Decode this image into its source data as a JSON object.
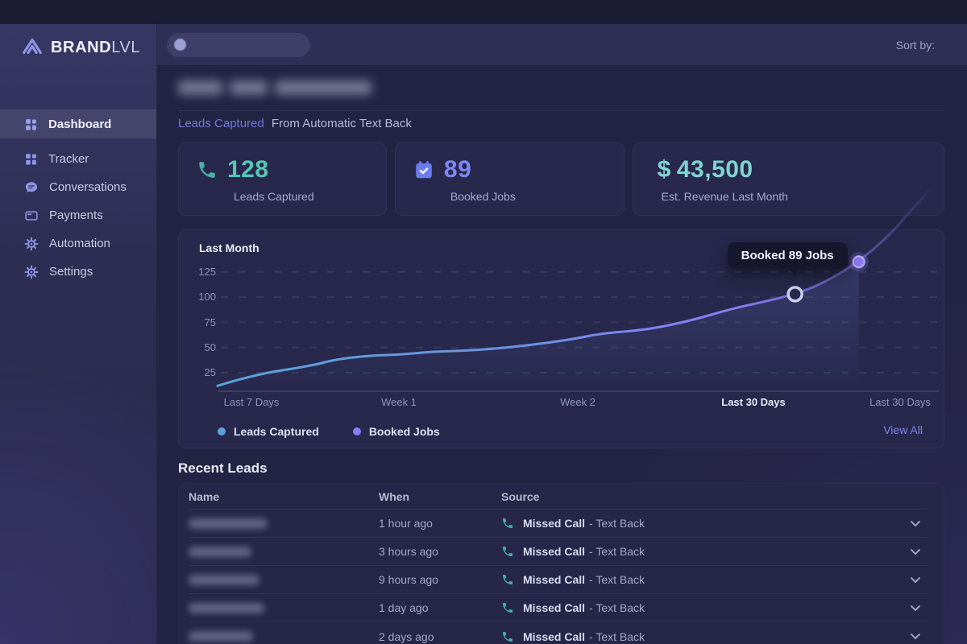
{
  "brand": {
    "name_primary": "BRAND",
    "name_secondary": "LVL"
  },
  "topbar": {
    "sort_label": "Sort by:"
  },
  "sidebar": {
    "items": [
      {
        "label": "Dashboard",
        "icon": "grid-icon",
        "active": true
      },
      {
        "label": "Tracker",
        "icon": "grid-icon",
        "active": false
      },
      {
        "label": "Conversations",
        "icon": "chat-icon",
        "active": false
      },
      {
        "label": "Payments",
        "icon": "credit-card-icon",
        "active": false
      },
      {
        "label": "Automation",
        "icon": "gear-icon",
        "active": false
      },
      {
        "label": "Settings",
        "icon": "gear-icon",
        "active": false
      }
    ]
  },
  "header": {
    "title_redacted": true,
    "subtitle_primary": "Leads Captured",
    "subtitle_secondary": "From Automatic Text Back"
  },
  "stats": {
    "cards": [
      {
        "icon": "phone-icon",
        "value": "128",
        "label": "Leads Captured",
        "value_color": "#57c7b6"
      },
      {
        "icon": "calendar-check-icon",
        "value": "89",
        "label": "Booked Jobs",
        "value_color": "#7d88f5"
      },
      {
        "icon": "none",
        "prefix": "$",
        "value": "43,500",
        "label": "Est. Revenue Last Month",
        "value_color": "#7fd4cf"
      }
    ]
  },
  "chart_data": {
    "type": "line",
    "title": "Last Month",
    "grid": "dashed-horizontal",
    "y_ticks_top_to_bottom": [
      125,
      100,
      75,
      50,
      25
    ],
    "x_labels": [
      {
        "label": "Last 7 Days",
        "emphasis": false
      },
      {
        "label": "Week 1",
        "emphasis": false
      },
      {
        "label": "Week 2",
        "emphasis": false
      },
      {
        "label": "Last 30 Days",
        "emphasis": true
      },
      {
        "label": "Last 30 Days",
        "emphasis": false
      }
    ],
    "legend": [
      {
        "label": "Leads Captured",
        "color": "#5ba3da"
      },
      {
        "label": "Booked Jobs",
        "color": "#8b7bf7"
      }
    ],
    "line_points": [
      {
        "t": 0.0,
        "v": 12
      },
      {
        "t": 0.05,
        "v": 23
      },
      {
        "t": 0.132,
        "v": 32
      },
      {
        "t": 0.163,
        "v": 38
      },
      {
        "t": 0.211,
        "v": 42
      },
      {
        "t": 0.256,
        "v": 43
      },
      {
        "t": 0.301,
        "v": 46
      },
      {
        "t": 0.354,
        "v": 47
      },
      {
        "t": 0.421,
        "v": 51
      },
      {
        "t": 0.495,
        "v": 58
      },
      {
        "t": 0.536,
        "v": 64
      },
      {
        "t": 0.604,
        "v": 68
      },
      {
        "t": 0.663,
        "v": 77
      },
      {
        "t": 0.716,
        "v": 88
      },
      {
        "t": 0.761,
        "v": 95
      },
      {
        "t": 0.807,
        "v": 103
      },
      {
        "t": 0.847,
        "v": 114
      },
      {
        "t": 0.896,
        "v": 135
      },
      {
        "t": 0.94,
        "v": 162
      },
      {
        "t": 0.974,
        "v": 190
      },
      {
        "t": 1.0,
        "v": 210
      }
    ],
    "tooltip": {
      "label": "Booked 89 Jobs",
      "value": 89,
      "point_index": 15
    },
    "marker_filled_index": 17,
    "view_all_label": "View All"
  },
  "recent_leads": {
    "title": "Recent Leads",
    "columns": [
      "Name",
      "When",
      "Source"
    ],
    "rows": [
      {
        "name_redacted": true,
        "when": "1 hour ago",
        "source_icon": "phone-icon",
        "source_primary": "Missed Call",
        "source_secondary": "- Text Back"
      },
      {
        "name_redacted": true,
        "when": "3 hours ago",
        "source_icon": "phone-icon",
        "source_primary": "Missed Call",
        "source_secondary": "- Text Back"
      },
      {
        "name_redacted": true,
        "when": "9 hours ago",
        "source_icon": "phone-icon",
        "source_primary": "Missed Call",
        "source_secondary": "- Text Back"
      },
      {
        "name_redacted": true,
        "when": "1 day ago",
        "source_icon": "phone-icon",
        "source_primary": "Missed Call",
        "source_secondary": "- Text Back"
      },
      {
        "name_redacted": true,
        "when": "2 days ago",
        "source_icon": "phone-icon",
        "source_primary": "Missed Call",
        "source_secondary": "- Text Back"
      }
    ]
  },
  "colors": {
    "teal": "#57c7b6",
    "indigo": "#7d88f5",
    "cyan": "#7fd4cf",
    "periwinkle": "#8d96e8",
    "line_blue": "#5ba3da",
    "line_purple": "#8b7bf7",
    "link": "#7b87ee",
    "card_bg": "#28284c",
    "main_bg": "#232343",
    "topbar_bg": "#2f2f55"
  }
}
